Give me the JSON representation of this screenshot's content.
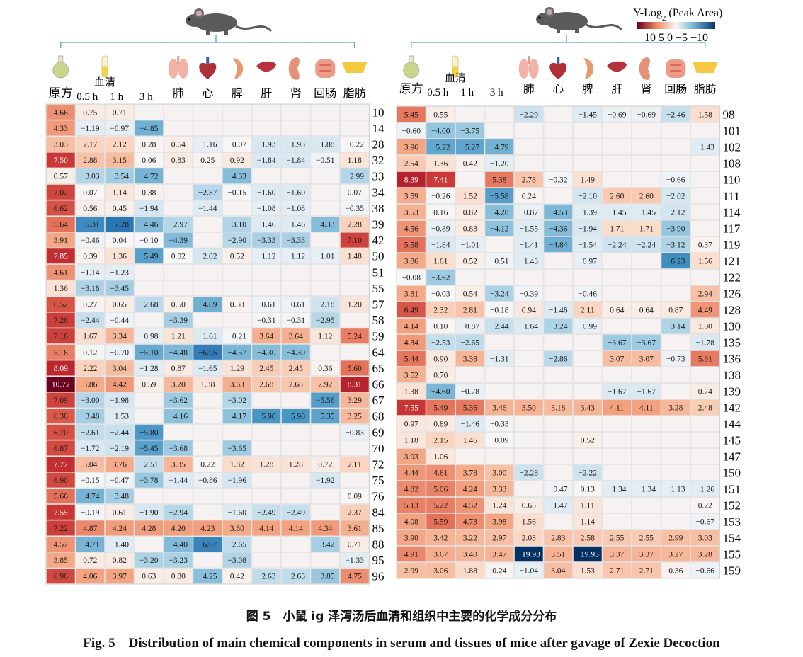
{
  "caption_cn": "图 5　小鼠 ig 泽泻汤后血清和组织中主要的化学成分分布",
  "caption_en": "Fig. 5　Distribution of main chemical components in serum and tissues of mice after gavage of Zexie Decoction",
  "colors": {
    "high": "#67001f",
    "mid": "#f7f7f7",
    "low": "#053061",
    "grid": "#d9d9d9"
  },
  "chart_data": [
    {
      "type": "heatmap",
      "title": "",
      "columns": [
        "原方",
        "0.5 h",
        "1 h",
        "3 h",
        "肺",
        "心",
        "脾",
        "肝",
        "肾",
        "回肠",
        "脂肪"
      ],
      "serum_group_label": "血清",
      "rows": [
        "10",
        "14",
        "28",
        "32",
        "33",
        "34",
        "38",
        "39",
        "42",
        "50",
        "51",
        "55",
        "57",
        "58",
        "59",
        "64",
        "65",
        "66",
        "67",
        "68",
        "69",
        "70",
        "72",
        "75",
        "76",
        "84",
        "85",
        "88",
        "95",
        "96"
      ],
      "values": [
        [
          4.66,
          0.75,
          0.71,
          null,
          null,
          null,
          null,
          null,
          null,
          null,
          null
        ],
        [
          4.33,
          -1.19,
          -0.97,
          -4.85,
          null,
          null,
          null,
          null,
          null,
          null,
          null
        ],
        [
          3.03,
          2.17,
          2.12,
          0.28,
          0.64,
          -1.16,
          -0.07,
          -1.93,
          -1.93,
          -1.88,
          -0.22
        ],
        [
          7.5,
          2.88,
          3.15,
          0.06,
          0.83,
          0.25,
          0.92,
          -1.84,
          -1.84,
          -0.51,
          1.18
        ],
        [
          0.57,
          -3.03,
          -3.54,
          -4.72,
          null,
          null,
          -4.33,
          null,
          null,
          null,
          -2.99
        ],
        [
          7.02,
          0.07,
          1.14,
          0.38,
          null,
          -2.87,
          -0.15,
          -1.6,
          -1.6,
          null,
          0.07
        ],
        [
          6.62,
          0.56,
          0.45,
          -1.94,
          null,
          -1.44,
          null,
          -1.08,
          -1.08,
          null,
          -0.35
        ],
        [
          5.64,
          -6.31,
          -7.28,
          -4.46,
          -2.97,
          null,
          -3.1,
          -1.46,
          -1.46,
          -4.33,
          2.28
        ],
        [
          3.91,
          -0.46,
          0.04,
          -0.1,
          -4.39,
          null,
          -2.9,
          -3.33,
          -3.33,
          null,
          7.1
        ],
        [
          7.85,
          0.39,
          1.36,
          -5.49,
          0.02,
          -2.02,
          0.52,
          -1.12,
          -1.12,
          -1.01,
          1.48
        ],
        [
          4.61,
          -1.14,
          -1.23,
          null,
          null,
          null,
          null,
          null,
          null,
          null,
          null
        ],
        [
          1.36,
          -3.18,
          -3.45,
          null,
          null,
          null,
          null,
          null,
          null,
          null,
          null
        ],
        [
          6.52,
          0.27,
          0.65,
          -2.68,
          0.5,
          -4.89,
          0.38,
          -0.61,
          -0.61,
          -2.18,
          1.2
        ],
        [
          7.26,
          -2.44,
          -0.44,
          null,
          -3.39,
          null,
          null,
          -0.31,
          -0.31,
          -2.95,
          null
        ],
        [
          7.16,
          1.67,
          3.34,
          -0.98,
          1.21,
          -1.61,
          -0.21,
          3.64,
          3.64,
          1.12,
          5.24
        ],
        [
          5.18,
          0.12,
          -0.7,
          -5.1,
          -4.48,
          -6.95,
          -4.57,
          -4.3,
          -4.3,
          null,
          null
        ],
        [
          8.09,
          2.22,
          3.04,
          -1.28,
          0.87,
          -1.65,
          1.29,
          2.45,
          2.45,
          0.36,
          5.6
        ],
        [
          10.72,
          3.86,
          4.42,
          0.59,
          3.2,
          1.38,
          3.63,
          2.68,
          2.68,
          2.92,
          8.31
        ],
        [
          7.09,
          -3.0,
          -1.98,
          null,
          -3.62,
          null,
          -3.02,
          null,
          null,
          -5.56,
          3.29
        ],
        [
          6.38,
          -3.48,
          -1.53,
          null,
          -4.16,
          null,
          -4.17,
          -5.9,
          -5.9,
          -5.35,
          3.25
        ],
        [
          6.7,
          -2.61,
          -2.44,
          -5.8,
          null,
          null,
          null,
          null,
          null,
          null,
          -0.83
        ],
        [
          6.87,
          -1.72,
          -2.19,
          -5.45,
          -3.68,
          null,
          -3.65,
          null,
          null,
          null,
          null
        ],
        [
          7.77,
          3.04,
          3.76,
          -2.51,
          3.35,
          0.22,
          1.82,
          1.28,
          1.28,
          0.72,
          2.11
        ],
        [
          6.9,
          -0.15,
          -0.47,
          -3.78,
          -1.44,
          -0.86,
          -1.96,
          null,
          null,
          -1.92,
          null
        ],
        [
          5.66,
          -4.74,
          -3.48,
          null,
          null,
          null,
          null,
          null,
          null,
          null,
          0.09
        ],
        [
          7.55,
          -0.19,
          0.61,
          -1.9,
          -2.94,
          null,
          -1.6,
          -2.49,
          -2.49,
          null,
          2.37
        ],
        [
          7.22,
          4.87,
          4.24,
          4.28,
          4.2,
          4.23,
          3.8,
          4.14,
          4.14,
          4.34,
          3.61
        ],
        [
          4.57,
          -4.71,
          -1.4,
          null,
          -4.4,
          -6.67,
          -2.65,
          null,
          null,
          -3.42,
          0.71
        ],
        [
          3.85,
          0.72,
          0.82,
          -3.2,
          -3.23,
          null,
          -3.08,
          null,
          null,
          null,
          -1.33
        ],
        [
          6.96,
          4.06,
          3.97,
          0.63,
          0.8,
          -4.25,
          0.42,
          -2.63,
          -2.63,
          -3.85,
          4.75
        ]
      ]
    },
    {
      "type": "heatmap",
      "title": "",
      "columns": [
        "原方",
        "0.5 h",
        "1 h",
        "3 h",
        "肺",
        "心",
        "脾",
        "肝",
        "肾",
        "回肠",
        "脂肪"
      ],
      "serum_group_label": "血清",
      "colorbar": {
        "title": "Y-Log",
        "subscript": "2",
        "suffix": " (Peak Area)",
        "ticks": "10 5 0 −5 −10",
        "range": [
          10,
          -10
        ]
      },
      "rows": [
        "98",
        "101",
        "102",
        "108",
        "110",
        "111",
        "114",
        "117",
        "119",
        "121",
        "122",
        "126",
        "128",
        "130",
        "135",
        "136",
        "138",
        "139",
        "142",
        "144",
        "145",
        "147",
        "150",
        "151",
        "152",
        "153",
        "154",
        "155",
        "159"
      ],
      "values": [
        [
          5.45,
          0.55,
          null,
          null,
          -2.29,
          null,
          -1.45,
          -0.69,
          -0.69,
          -2.46,
          1.58
        ],
        [
          -0.6,
          -4.0,
          -3.75,
          null,
          null,
          null,
          null,
          null,
          null,
          null,
          null
        ],
        [
          3.96,
          -5.22,
          -5.27,
          -4.79,
          null,
          null,
          null,
          null,
          null,
          null,
          -1.43
        ],
        [
          2.54,
          1.36,
          0.42,
          -1.2,
          null,
          null,
          null,
          null,
          null,
          null,
          null
        ],
        [
          8.39,
          7.41,
          null,
          5.38,
          2.78,
          -0.32,
          1.49,
          null,
          null,
          -0.66,
          null
        ],
        [
          3.59,
          -0.26,
          1.52,
          -5.58,
          0.24,
          null,
          -2.1,
          2.6,
          2.6,
          -2.02,
          null
        ],
        [
          3.53,
          0.16,
          0.82,
          -4.28,
          -0.87,
          -4.53,
          -1.39,
          -1.45,
          -1.45,
          -2.12,
          null
        ],
        [
          4.56,
          -0.89,
          0.83,
          -4.12,
          -1.55,
          -4.36,
          -1.94,
          1.71,
          1.71,
          -3.9,
          null
        ],
        [
          5.58,
          -1.84,
          -1.01,
          null,
          -1.41,
          -4.84,
          -1.54,
          -2.24,
          -2.24,
          -3.12,
          0.37
        ],
        [
          3.86,
          1.61,
          0.52,
          -0.51,
          -1.43,
          null,
          -0.97,
          null,
          null,
          -6.23,
          1.56
        ],
        [
          -0.08,
          -3.62,
          null,
          null,
          null,
          null,
          null,
          null,
          null,
          null,
          null
        ],
        [
          3.81,
          -0.03,
          0.54,
          -3.24,
          -0.39,
          null,
          -0.46,
          null,
          null,
          null,
          2.94
        ],
        [
          6.49,
          2.32,
          2.81,
          -0.18,
          0.94,
          -1.46,
          2.11,
          0.64,
          0.64,
          0.87,
          4.49
        ],
        [
          4.14,
          0.1,
          -0.87,
          -2.44,
          -1.64,
          -3.24,
          -0.99,
          null,
          null,
          -3.14,
          1.0
        ],
        [
          4.34,
          -2.53,
          -2.65,
          null,
          null,
          null,
          null,
          -3.67,
          -3.67,
          null,
          -1.78
        ],
        [
          5.44,
          0.9,
          3.38,
          -1.31,
          null,
          -2.86,
          null,
          3.07,
          3.07,
          -0.73,
          5.31
        ],
        [
          3.52,
          0.7,
          null,
          null,
          null,
          null,
          null,
          null,
          null,
          null,
          null
        ],
        [
          1.38,
          -4.6,
          -0.78,
          null,
          null,
          null,
          null,
          -1.67,
          -1.67,
          null,
          0.74
        ],
        [
          7.55,
          5.49,
          5.36,
          3.46,
          3.5,
          3.18,
          3.43,
          4.11,
          4.11,
          3.28,
          2.48
        ],
        [
          0.97,
          0.89,
          -1.46,
          -0.33,
          null,
          null,
          null,
          null,
          null,
          null,
          null
        ],
        [
          1.18,
          2.15,
          1.46,
          -0.09,
          null,
          null,
          0.52,
          null,
          null,
          null,
          null
        ],
        [
          3.93,
          1.06,
          null,
          null,
          null,
          null,
          null,
          null,
          null,
          null,
          null
        ],
        [
          4.44,
          4.61,
          3.78,
          3.0,
          -2.28,
          null,
          -2.22,
          null,
          null,
          null,
          null
        ],
        [
          4.82,
          5.06,
          4.24,
          3.33,
          null,
          -0.47,
          0.13,
          -1.34,
          -1.34,
          -1.13,
          -1.26
        ],
        [
          5.13,
          5.22,
          4.52,
          1.24,
          0.65,
          -1.47,
          1.11,
          null,
          null,
          null,
          0.22
        ],
        [
          4.08,
          5.59,
          4.73,
          3.98,
          1.56,
          null,
          1.14,
          null,
          null,
          null,
          -0.67
        ],
        [
          3.9,
          3.42,
          3.22,
          2.97,
          2.03,
          2.83,
          2.58,
          2.55,
          2.55,
          2.99,
          3.03
        ],
        [
          4.91,
          3.67,
          3.4,
          3.47,
          -19.93,
          3.51,
          -19.93,
          3.37,
          3.37,
          3.27,
          3.28
        ],
        [
          2.99,
          3.06,
          1.88,
          0.24,
          -1.04,
          3.04,
          1.53,
          2.71,
          2.71,
          0.36,
          -0.66
        ]
      ]
    }
  ]
}
